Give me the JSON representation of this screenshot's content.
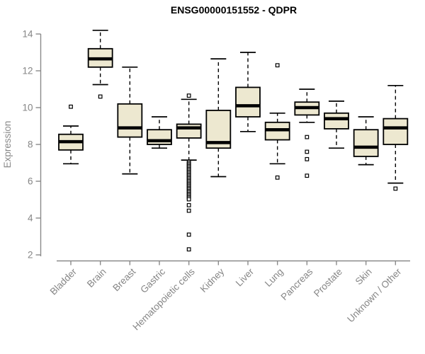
{
  "title": "ENSG00000151552 - QDPR",
  "chart_data": {
    "type": "boxplot",
    "title": "ENSG00000151552 - QDPR",
    "xlabel": "",
    "ylabel": "Expression",
    "ylim": [
      2,
      14
    ],
    "yticks": [
      2,
      4,
      6,
      8,
      10,
      12,
      14
    ],
    "grid": false,
    "legend": false,
    "categories": [
      "Bladder",
      "Brain",
      "Breast",
      "Gastric",
      "Hematopoietic cells",
      "Kidney",
      "Liver",
      "Lung",
      "Pancreas",
      "Prostate",
      "Skin",
      "Unknown / Other"
    ],
    "series": [
      {
        "name": "Bladder",
        "whisker_low": 6.95,
        "q1": 7.7,
        "median": 8.15,
        "q3": 8.55,
        "whisker_high": 9.0,
        "outliers": [
          10.05
        ]
      },
      {
        "name": "Brain",
        "whisker_low": 11.25,
        "q1": 12.2,
        "median": 12.65,
        "q3": 13.2,
        "whisker_high": 14.2,
        "outliers": [
          10.6
        ]
      },
      {
        "name": "Breast",
        "whisker_low": 6.4,
        "q1": 8.4,
        "median": 8.9,
        "q3": 10.2,
        "whisker_high": 12.2,
        "outliers": []
      },
      {
        "name": "Gastric",
        "whisker_low": 7.8,
        "q1": 8.0,
        "median": 8.2,
        "q3": 8.8,
        "whisker_high": 9.5,
        "outliers": []
      },
      {
        "name": "Hematopoietic cells",
        "whisker_low": 7.15,
        "q1": 8.35,
        "median": 8.9,
        "q3": 9.1,
        "whisker_high": 10.45,
        "outliers": [
          10.65,
          7.05,
          6.97,
          6.9,
          6.82,
          6.75,
          6.67,
          6.6,
          6.52,
          6.45,
          6.37,
          6.3,
          6.22,
          6.15,
          6.07,
          6.0,
          5.92,
          5.85,
          5.77,
          5.7,
          5.62,
          5.55,
          5.47,
          5.4,
          5.32,
          5.25,
          5.17,
          5.1,
          5.02,
          4.7,
          4.4,
          3.1,
          2.3
        ]
      },
      {
        "name": "Kidney",
        "whisker_low": 6.25,
        "q1": 7.8,
        "median": 8.1,
        "q3": 9.85,
        "whisker_high": 12.65,
        "outliers": []
      },
      {
        "name": "Liver",
        "whisker_low": 8.7,
        "q1": 9.5,
        "median": 10.1,
        "q3": 11.1,
        "whisker_high": 13.0,
        "outliers": []
      },
      {
        "name": "Lung",
        "whisker_low": 6.95,
        "q1": 8.25,
        "median": 8.8,
        "q3": 9.2,
        "whisker_high": 9.7,
        "outliers": [
          12.3,
          6.2
        ]
      },
      {
        "name": "Pancreas",
        "whisker_low": 9.2,
        "q1": 9.6,
        "median": 10.0,
        "q3": 10.3,
        "whisker_high": 11.0,
        "outliers": [
          8.4,
          7.6,
          7.2,
          6.3
        ]
      },
      {
        "name": "Prostate",
        "whisker_low": 7.8,
        "q1": 8.85,
        "median": 9.4,
        "q3": 9.7,
        "whisker_high": 10.35,
        "outliers": []
      },
      {
        "name": "Skin",
        "whisker_low": 6.9,
        "q1": 7.35,
        "median": 7.85,
        "q3": 8.8,
        "whisker_high": 9.5,
        "outliers": []
      },
      {
        "name": "Unknown / Other",
        "whisker_low": 5.9,
        "q1": 8.0,
        "median": 8.9,
        "q3": 9.4,
        "whisker_high": 11.2,
        "outliers": [
          5.6
        ]
      }
    ],
    "colors": {
      "box_fill": "#EDE8D0",
      "box_border": "#000000",
      "median": "#000000",
      "whisker": "#000000",
      "outlier_fill": "#ffffff",
      "outlier_border": "#000000",
      "axis": "#8a8a8a",
      "tick_label": "#868686",
      "title": "#000000",
      "background": "#ffffff"
    }
  }
}
